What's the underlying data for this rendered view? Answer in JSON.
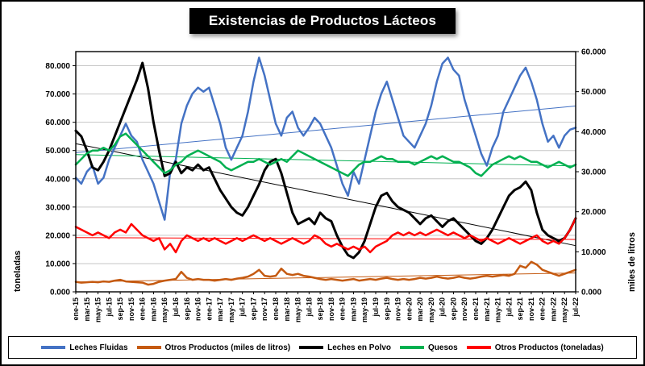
{
  "title": "Existencias de Productos Lácteos",
  "chart_data": {
    "type": "line",
    "x": [
      "ene-15",
      "feb-15",
      "mar-15",
      "abr-15",
      "may-15",
      "jun-15",
      "jul-15",
      "ago-15",
      "sep-15",
      "oct-15",
      "nov-15",
      "dic-15",
      "ene-16",
      "feb-16",
      "mar-16",
      "abr-16",
      "may-16",
      "jun-16",
      "jul-16",
      "ago-16",
      "sep-16",
      "oct-16",
      "nov-16",
      "dic-16",
      "ene-17",
      "feb-17",
      "mar-17",
      "abr-17",
      "may-17",
      "jun-17",
      "jul-17",
      "ago-17",
      "sep-17",
      "oct-17",
      "nov-17",
      "dic-17",
      "ene-18",
      "feb-18",
      "mar-18",
      "abr-18",
      "may-18",
      "jun-18",
      "jul-18",
      "ago-18",
      "sep-18",
      "oct-18",
      "nov-18",
      "dic-18",
      "ene-19",
      "feb-19",
      "mar-19",
      "abr-19",
      "may-19",
      "jun-19",
      "jul-19",
      "ago-19",
      "sep-19",
      "oct-19",
      "nov-19",
      "dic-19",
      "ene-20",
      "feb-20",
      "mar-20",
      "abr-20",
      "may-20",
      "jun-20",
      "jul-20",
      "ago-20",
      "sep-20",
      "oct-20",
      "nov-20",
      "dic-20",
      "ene-21",
      "feb-21",
      "mar-21",
      "abr-21",
      "may-21",
      "jun-21",
      "jul-21",
      "ago-21",
      "sep-21",
      "oct-21",
      "nov-21",
      "dic-21",
      "ene-22",
      "feb-22",
      "mar-22",
      "abr-22",
      "may-22",
      "jun-22",
      "jul-22"
    ],
    "x_tick_every": 2,
    "value_scale_note": "series values in thousands, matching axis tick labels (e.g. 80.000 = 80)",
    "axes": {
      "left": {
        "label": "toneladas",
        "min": 0,
        "max": 85,
        "tick_values": [
          0,
          10,
          20,
          30,
          40,
          50,
          60,
          70,
          80
        ],
        "tick_labels": [
          "0.000",
          "10.000",
          "20.000",
          "30.000",
          "40.000",
          "50.000",
          "60.000",
          "70.000",
          "80.000"
        ]
      },
      "right": {
        "label": "miles de litros",
        "min": 0,
        "max": 60,
        "tick_values": [
          0,
          10,
          20,
          30,
          40,
          50,
          60
        ],
        "tick_labels": [
          "0.000",
          "10.000",
          "20.000",
          "30.000",
          "40.000",
          "50.000",
          "60.000"
        ]
      }
    },
    "legend_position": "bottom",
    "series": [
      {
        "name": "Leches Fluidas",
        "color": "#4472C4",
        "axis": "right",
        "trendline": true,
        "values": [
          28.5,
          27,
          30,
          31.5,
          27,
          28.5,
          33,
          36,
          39,
          42,
          39,
          37.5,
          33,
          30,
          27,
          22.5,
          18,
          30,
          33,
          42,
          46.5,
          49.5,
          51,
          50,
          51,
          46.5,
          42,
          36,
          33,
          36,
          39,
          45,
          52.5,
          58.5,
          54,
          48,
          42,
          39,
          43.5,
          45,
          41,
          39,
          41,
          43.5,
          42,
          39,
          36,
          31.5,
          27,
          24,
          30,
          27,
          33,
          39,
          45,
          49.5,
          52.5,
          48,
          43.5,
          39,
          37.5,
          36,
          39,
          42,
          46.5,
          52.5,
          57,
          58.5,
          55.5,
          54,
          48,
          43.5,
          39,
          34.5,
          31.5,
          36,
          39,
          45,
          48,
          51,
          54,
          56,
          52.5,
          48,
          42,
          37.5,
          39,
          36,
          39,
          40.5,
          41
        ]
      },
      {
        "name": "Otros Productos (miles de litros)",
        "color": "#C55A11",
        "axis": "right",
        "trendline": true,
        "values": [
          2.5,
          2.3,
          2.4,
          2.5,
          2.4,
          2.6,
          2.5,
          2.8,
          3,
          2.6,
          2.5,
          2.4,
          2.3,
          1.8,
          2,
          2.5,
          2.8,
          3,
          3.2,
          5,
          3.5,
          3,
          3.2,
          3,
          3,
          2.8,
          3,
          3.2,
          3,
          3.3,
          3.5,
          3.8,
          4.5,
          5.5,
          4,
          3.8,
          4,
          5.8,
          4.5,
          4.2,
          4.5,
          4,
          3.8,
          3.5,
          3.2,
          3,
          3.2,
          3,
          2.8,
          3,
          3.2,
          2.8,
          3,
          3.2,
          3,
          3.3,
          3.5,
          3.2,
          3,
          3.2,
          3,
          3.2,
          3.5,
          3.3,
          3.5,
          3.8,
          3.5,
          3.3,
          3.5,
          3.8,
          3.5,
          3.3,
          3.5,
          3.8,
          4,
          3.8,
          4,
          4.2,
          4,
          4.5,
          6.5,
          6,
          7.5,
          6.8,
          5.5,
          5,
          4.5,
          4,
          4.5,
          5,
          5.5
        ]
      },
      {
        "name": "Leches en Polvo",
        "color": "#000000",
        "axis": "left",
        "trendline": true,
        "values": [
          57,
          55,
          50,
          44,
          43,
          46,
          50,
          55,
          60,
          65,
          70,
          75,
          81,
          72,
          60,
          50,
          41,
          42,
          46,
          42,
          44,
          43,
          45,
          43,
          44,
          40,
          36,
          33,
          30,
          28,
          27,
          30,
          34,
          38,
          43,
          46,
          47,
          42,
          35,
          28,
          24,
          25,
          26,
          24,
          28,
          26,
          25,
          20,
          16,
          13,
          12,
          14,
          18,
          24,
          30,
          34,
          35,
          32,
          30,
          29,
          28,
          26,
          24,
          26,
          27,
          25,
          23,
          25,
          26,
          24,
          22,
          20,
          18,
          17,
          19,
          22,
          26,
          30,
          34,
          36,
          37,
          39,
          36,
          28,
          22,
          20,
          19,
          18,
          19,
          22,
          26
        ]
      },
      {
        "name": "Quesos",
        "color": "#00B050",
        "axis": "left",
        "trendline": true,
        "values": [
          45,
          47,
          49,
          50,
          50,
          51,
          50,
          52,
          55,
          56,
          54,
          52,
          50,
          48,
          46,
          44,
          42,
          43,
          45,
          46,
          48,
          49,
          50,
          49,
          48,
          47,
          46,
          44,
          43,
          44,
          45,
          46,
          46,
          47,
          46,
          45,
          46,
          47,
          46,
          48,
          50,
          49,
          48,
          47,
          46,
          45,
          44,
          43,
          42,
          41,
          43,
          45,
          46,
          46,
          47,
          48,
          47,
          47,
          46,
          46,
          46,
          45,
          46,
          47,
          48,
          47,
          48,
          47,
          46,
          46,
          45,
          44,
          42,
          41,
          43,
          45,
          46,
          47,
          48,
          47,
          48,
          47,
          46,
          46,
          45,
          44,
          45,
          46,
          45,
          44,
          45
        ]
      },
      {
        "name": "Otros Productos (toneladas)",
        "color": "#FF0000",
        "axis": "left",
        "trendline": true,
        "values": [
          23,
          22,
          21,
          20,
          21,
          20,
          19,
          21,
          22,
          21,
          24,
          22,
          20,
          19,
          18,
          19,
          15,
          17,
          14,
          18,
          20,
          19,
          18,
          19,
          18,
          19,
          18,
          17,
          18,
          19,
          18,
          19,
          20,
          19,
          18,
          19,
          18,
          17,
          18,
          19,
          18,
          17,
          18,
          20,
          19,
          17,
          16,
          17,
          16,
          15,
          16,
          15,
          16,
          14,
          16,
          17,
          18,
          20,
          21,
          20,
          21,
          20,
          21,
          20,
          21,
          22,
          21,
          20,
          21,
          20,
          19,
          20,
          19,
          18,
          19,
          18,
          17,
          18,
          19,
          18,
          17,
          18,
          19,
          20,
          18,
          17,
          18,
          17,
          19,
          22,
          26
        ]
      }
    ]
  }
}
